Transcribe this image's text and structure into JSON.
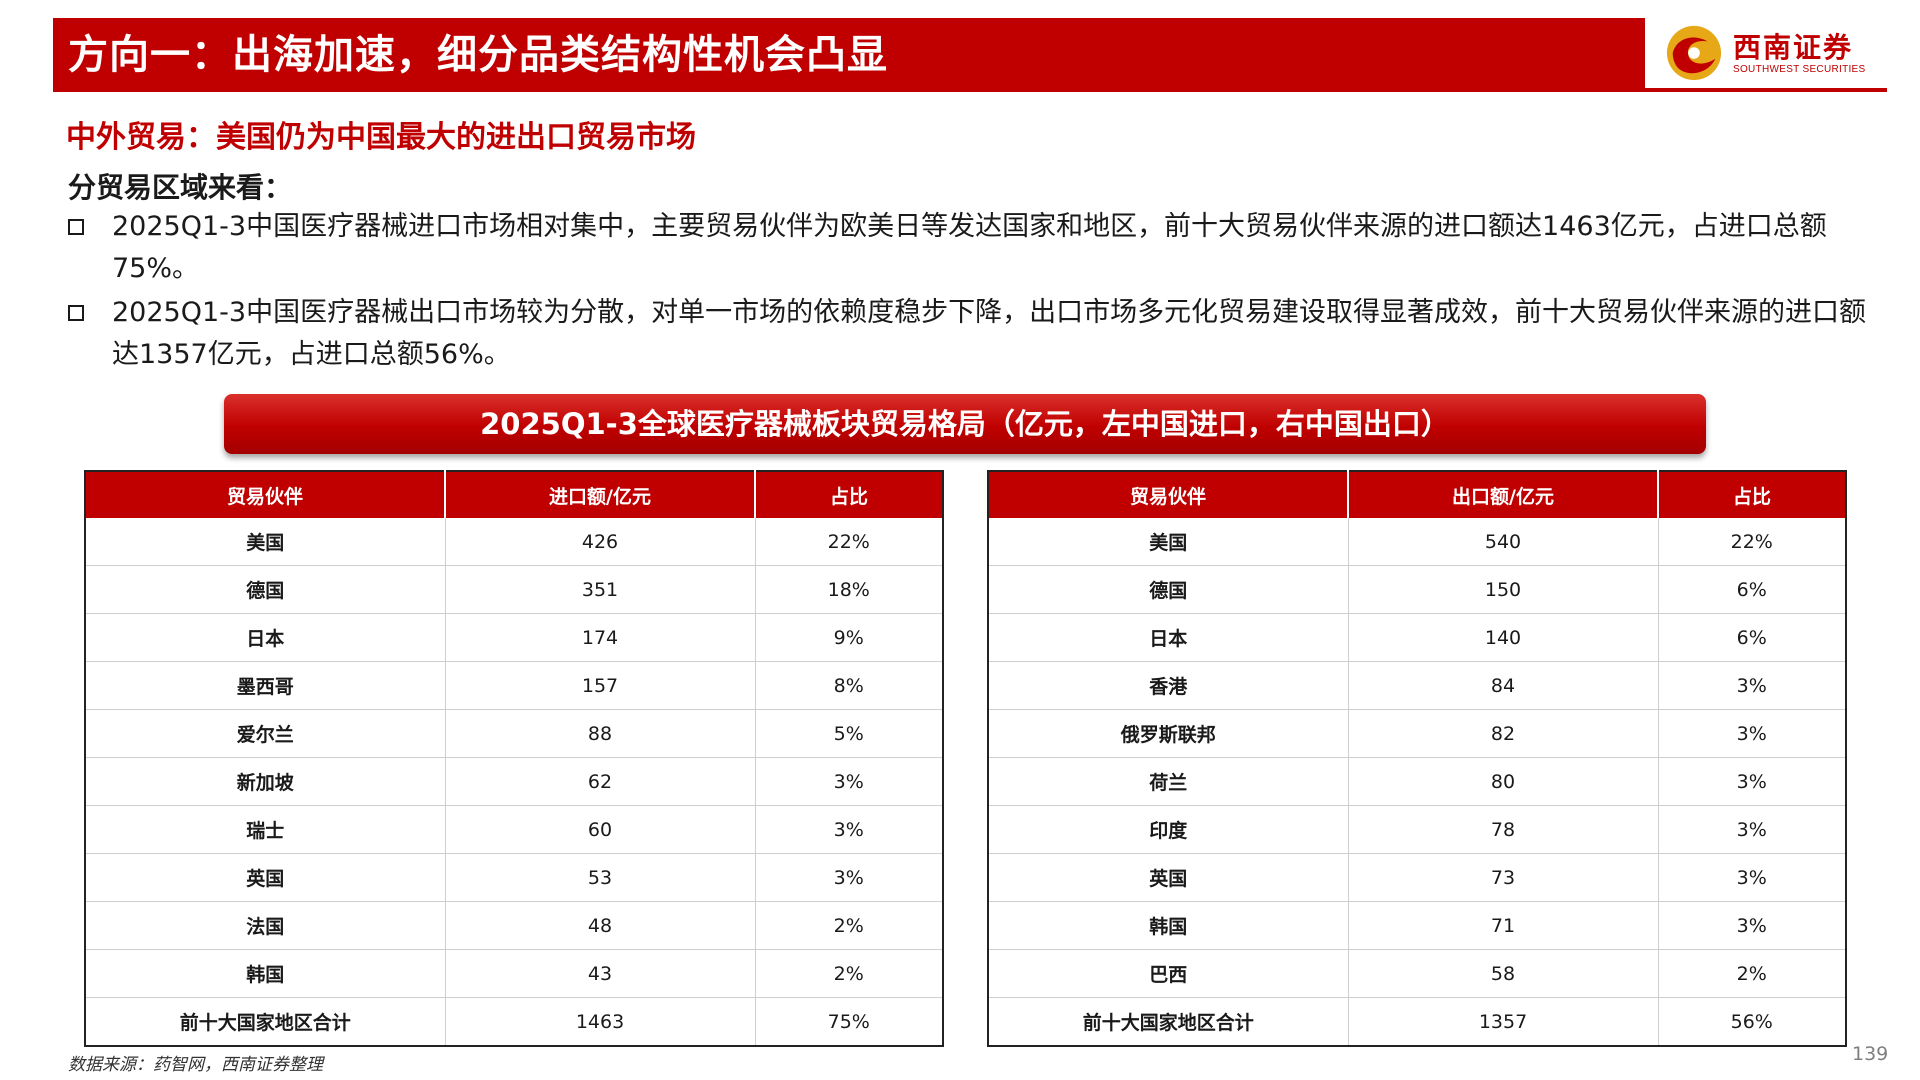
{
  "header": {
    "title": "方向一：出海加速，细分品类结构性机会凸显",
    "logo_cn": "西南证券",
    "logo_en": "SOUTHWEST SECURITIES"
  },
  "subtitle": "中外贸易：美国仍为中国最大的进出口贸易市场",
  "section_heading": "分贸易区域来看：",
  "bullets": [
    "2025Q1-3中国医疗器械进口市场相对集中，主要贸易伙伴为欧美日等发达国家和地区，前十大贸易伙伴来源的进口额达1463亿元，占进口总额75%。",
    "2025Q1-3中国医疗器械出口市场较为分散，对单一市场的依赖度稳步下降，出口市场多元化贸易建设取得显著成效，前十大贸易伙伴来源的进口额达1357亿元，占进口总额56%。"
  ],
  "banner": "2025Q1-3全球医疗器械板块贸易格局（亿元，左中国进口，右中国出口）",
  "import_table": {
    "headers": [
      "贸易伙伴",
      "进口额/亿元",
      "占比"
    ],
    "rows": [
      [
        "美国",
        "426",
        "22%"
      ],
      [
        "德国",
        "351",
        "18%"
      ],
      [
        "日本",
        "174",
        "9%"
      ],
      [
        "墨西哥",
        "157",
        "8%"
      ],
      [
        "爱尔兰",
        "88",
        "5%"
      ],
      [
        "新加坡",
        "62",
        "3%"
      ],
      [
        "瑞士",
        "60",
        "3%"
      ],
      [
        "英国",
        "53",
        "3%"
      ],
      [
        "法国",
        "48",
        "2%"
      ],
      [
        "韩国",
        "43",
        "2%"
      ],
      [
        "前十大国家地区合计",
        "1463",
        "75%"
      ]
    ]
  },
  "export_table": {
    "headers": [
      "贸易伙伴",
      "出口额/亿元",
      "占比"
    ],
    "rows": [
      [
        "美国",
        "540",
        "22%"
      ],
      [
        "德国",
        "150",
        "6%"
      ],
      [
        "日本",
        "140",
        "6%"
      ],
      [
        "香港",
        "84",
        "3%"
      ],
      [
        "俄罗斯联邦",
        "82",
        "3%"
      ],
      [
        "荷兰",
        "80",
        "3%"
      ],
      [
        "印度",
        "78",
        "3%"
      ],
      [
        "英国",
        "73",
        "3%"
      ],
      [
        "韩国",
        "71",
        "3%"
      ],
      [
        "巴西",
        "58",
        "2%"
      ],
      [
        "前十大国家地区合计",
        "1357",
        "56%"
      ]
    ]
  },
  "source": "数据来源：药智网，西南证券整理",
  "page_number": "139",
  "colors": {
    "brand_red": "#c00000",
    "gold": "#e6a817"
  },
  "icons": {
    "bullet": "checkbox-square-icon",
    "logo": "southwest-securities-logo-icon"
  }
}
